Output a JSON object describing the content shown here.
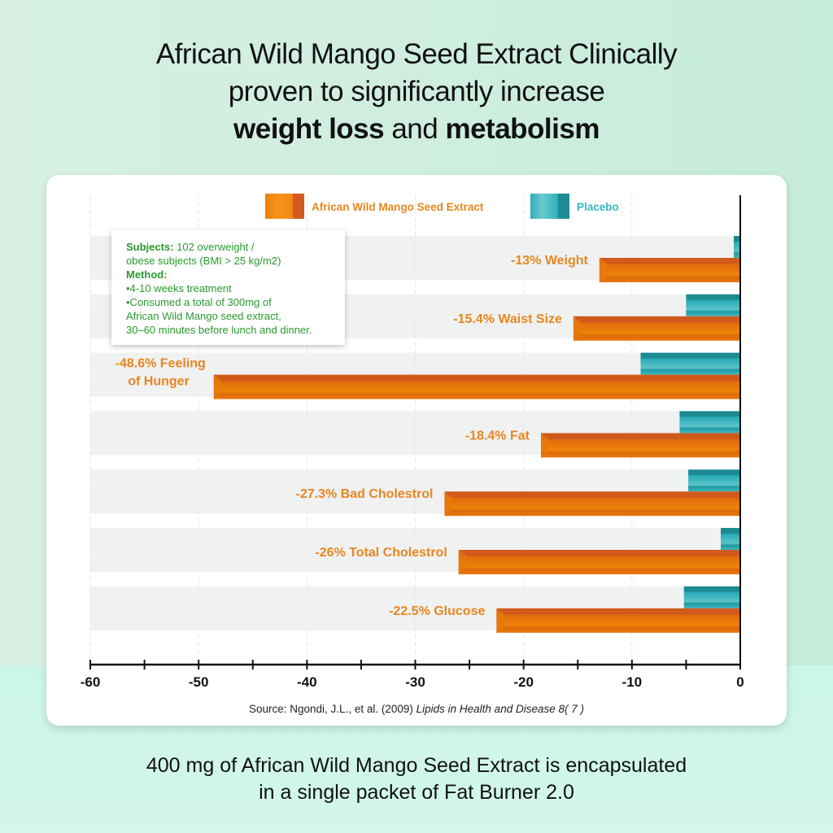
{
  "headline": {
    "line1": "African Wild Mango Seed Extract Clinically",
    "line2": "proven to significantly increase",
    "line3_bold1": "weight loss",
    "line3_mid": " and ",
    "line3_bold2": "metabolism"
  },
  "info_box": {
    "subjects_label": "Subjects:",
    "subjects_text1": " 102 overweight /",
    "subjects_text2": "obese subjects (BMI > 25 kg/m2)",
    "method_label": "Method:",
    "method_item1": "•4-10 weeks treatment",
    "method_item2a": "•Consumed a total of 300mg of",
    "method_item2b": "African Wild Mango seed extract,",
    "method_item2c": "30–60 minutes before lunch and dinner."
  },
  "colors": {
    "extract": "#e8780a",
    "extract_dark": "#cf5a1c",
    "placebo": "#22aab5",
    "placebo_dark": "#1d8a92",
    "label": "#e8861f",
    "info_text": "#2a9a2e",
    "row_band": "#f0f1f1"
  },
  "chart_data": {
    "type": "bar",
    "orientation": "horizontal",
    "title": "",
    "categories": [
      "Weight",
      "Waist Size",
      "Feeling of Hunger",
      "Fat",
      "Bad Cholestrol",
      "Total Cholestrol",
      "Glucose"
    ],
    "data_labels": [
      "-13% Weight",
      "-15.4% Waist Size",
      "-48.6% Feeling\nof Hunger",
      "-18.4% Fat",
      "-27.3% Bad Cholestrol",
      "-26% Total Cholestrol",
      "-22.5% Glucose"
    ],
    "series": [
      {
        "name": "African Wild Mango Seed Extract",
        "values": [
          -13,
          -15.4,
          -48.6,
          -18.4,
          -27.3,
          -26,
          -22.5
        ]
      },
      {
        "name": "Placebo",
        "values": [
          -0.6,
          -5.0,
          -9.2,
          -5.6,
          -4.8,
          -1.8,
          -5.2
        ]
      }
    ],
    "xlim": [
      -60,
      0
    ],
    "xticks": [
      -60,
      -50,
      -40,
      -30,
      -20,
      -10,
      0
    ],
    "xtick_labels": [
      "-60",
      "-50",
      "-40",
      "-30",
      "-20",
      "-10",
      "0"
    ],
    "minor_ticks": [
      -55,
      -45,
      -35,
      -25,
      -15,
      -5
    ],
    "xlabel": "",
    "ylabel": "",
    "grid": true,
    "legend": "top-center",
    "source": "Source: Ngondi, J.L., et al. (2009) ",
    "source_italic": "Lipids in Health and Disease 8( 7 )"
  },
  "footer": {
    "line1": "400 mg of African Wild Mango Seed Extract is encapsulated",
    "line2": "in a single packet of Fat Burner 2.0"
  }
}
